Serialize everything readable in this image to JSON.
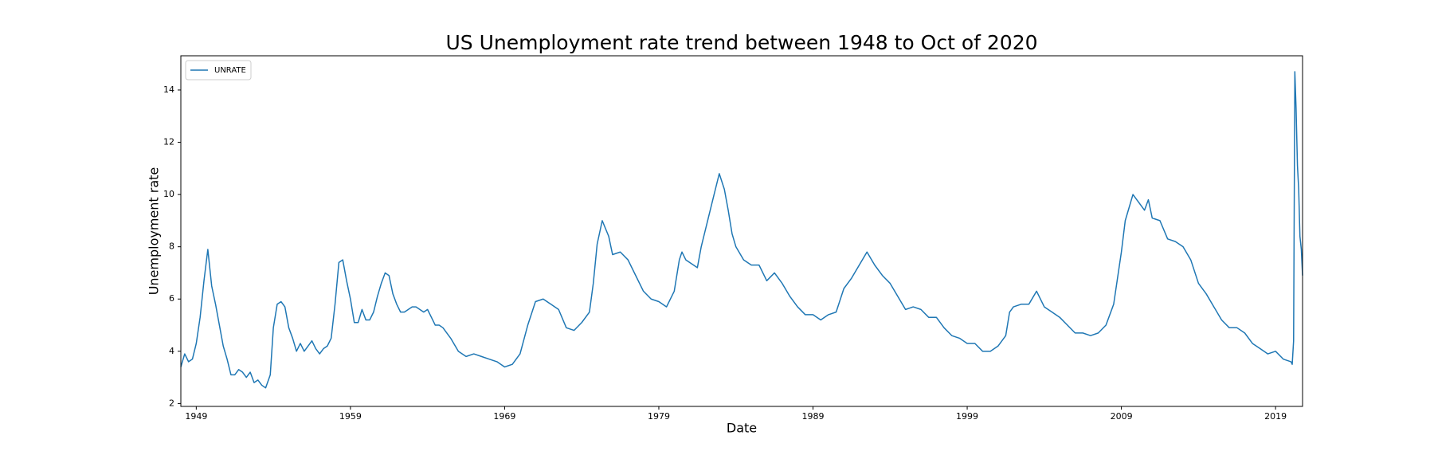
{
  "chart_data": {
    "type": "line",
    "title": "US Unemployment rate trend between 1948 to Oct of 2020",
    "x_label": "Date",
    "y_label": "Unemployment rate",
    "legend_loc": "upper left",
    "x": [
      1948.0,
      1948.25,
      1948.5,
      1948.75,
      1949.0,
      1949.25,
      1949.5,
      1949.75,
      1950.0,
      1950.25,
      1950.5,
      1950.75,
      1951.0,
      1951.25,
      1951.5,
      1951.75,
      1952.0,
      1952.25,
      1952.5,
      1952.75,
      1953.0,
      1953.25,
      1953.5,
      1953.8,
      1954.0,
      1954.25,
      1954.5,
      1954.75,
      1955.0,
      1955.25,
      1955.5,
      1955.75,
      1956.0,
      1956.25,
      1956.5,
      1956.75,
      1957.0,
      1957.25,
      1957.5,
      1957.75,
      1958.0,
      1958.25,
      1958.5,
      1958.75,
      1959.0,
      1959.25,
      1959.5,
      1959.75,
      1960.0,
      1960.25,
      1960.5,
      1960.75,
      1961.0,
      1961.25,
      1961.5,
      1961.75,
      1962.0,
      1962.25,
      1962.5,
      1962.75,
      1963.0,
      1963.25,
      1963.5,
      1963.75,
      1964.0,
      1964.25,
      1964.5,
      1964.75,
      1965.0,
      1965.5,
      1966.0,
      1966.5,
      1967.0,
      1967.5,
      1968.0,
      1968.5,
      1969.0,
      1969.5,
      1970.0,
      1970.5,
      1971.0,
      1971.5,
      1972.0,
      1972.5,
      1973.0,
      1973.5,
      1974.0,
      1974.5,
      1974.75,
      1975.0,
      1975.33,
      1975.75,
      1976.0,
      1976.5,
      1977.0,
      1977.5,
      1978.0,
      1978.5,
      1979.0,
      1979.5,
      1980.0,
      1980.33,
      1980.5,
      1980.75,
      1981.0,
      1981.5,
      1981.75,
      1982.0,
      1982.5,
      1982.92,
      1983.25,
      1983.5,
      1983.75,
      1984.0,
      1984.5,
      1985.0,
      1985.5,
      1986.0,
      1986.5,
      1987.0,
      1987.5,
      1988.0,
      1988.5,
      1989.0,
      1989.5,
      1990.0,
      1990.5,
      1991.0,
      1991.5,
      1992.0,
      1992.5,
      1993.0,
      1993.5,
      1994.0,
      1994.5,
      1995.0,
      1995.5,
      1996.0,
      1996.5,
      1997.0,
      1997.5,
      1998.0,
      1998.5,
      1999.0,
      1999.5,
      2000.0,
      2000.5,
      2001.0,
      2001.5,
      2001.75,
      2002.0,
      2002.5,
      2003.0,
      2003.5,
      2004.0,
      2004.5,
      2005.0,
      2005.5,
      2006.0,
      2006.5,
      2007.0,
      2007.5,
      2008.0,
      2008.5,
      2008.75,
      2009.0,
      2009.25,
      2009.5,
      2009.75,
      2010.0,
      2010.5,
      2010.75,
      2011.0,
      2011.5,
      2012.0,
      2012.5,
      2013.0,
      2013.5,
      2014.0,
      2014.5,
      2015.0,
      2015.5,
      2016.0,
      2016.5,
      2017.0,
      2017.5,
      2018.0,
      2018.5,
      2019.0,
      2019.5,
      2020.0,
      2020.08,
      2020.17,
      2020.25,
      2020.33,
      2020.42,
      2020.5,
      2020.58,
      2020.67,
      2020.75
    ],
    "series": [
      {
        "name": "UNRATE",
        "color": "#1f77b4",
        "values": [
          3.4,
          3.9,
          3.6,
          3.7,
          4.3,
          5.3,
          6.7,
          7.9,
          6.5,
          5.8,
          5.0,
          4.2,
          3.7,
          3.1,
          3.1,
          3.3,
          3.2,
          3.0,
          3.2,
          2.8,
          2.9,
          2.7,
          2.6,
          3.1,
          4.9,
          5.8,
          5.9,
          5.7,
          4.9,
          4.5,
          4.0,
          4.3,
          4.0,
          4.2,
          4.4,
          4.1,
          3.9,
          4.1,
          4.2,
          4.5,
          5.8,
          7.4,
          7.5,
          6.7,
          6.0,
          5.1,
          5.1,
          5.6,
          5.2,
          5.2,
          5.5,
          6.1,
          6.6,
          7.0,
          6.9,
          6.2,
          5.8,
          5.5,
          5.5,
          5.6,
          5.7,
          5.7,
          5.6,
          5.5,
          5.6,
          5.3,
          5.0,
          5.0,
          4.9,
          4.5,
          4.0,
          3.8,
          3.9,
          3.8,
          3.7,
          3.6,
          3.4,
          3.5,
          3.9,
          5.0,
          5.9,
          6.0,
          5.8,
          5.6,
          4.9,
          4.8,
          5.1,
          5.5,
          6.6,
          8.1,
          9.0,
          8.4,
          7.7,
          7.8,
          7.5,
          6.9,
          6.3,
          6.0,
          5.9,
          5.7,
          6.3,
          7.5,
          7.8,
          7.5,
          7.4,
          7.2,
          8.0,
          8.6,
          9.8,
          10.8,
          10.2,
          9.4,
          8.5,
          8.0,
          7.5,
          7.3,
          7.3,
          6.7,
          7.0,
          6.6,
          6.1,
          5.7,
          5.4,
          5.4,
          5.2,
          5.4,
          5.5,
          6.4,
          6.8,
          7.3,
          7.8,
          7.3,
          6.9,
          6.6,
          6.1,
          5.6,
          5.7,
          5.6,
          5.3,
          5.3,
          4.9,
          4.6,
          4.5,
          4.3,
          4.3,
          4.0,
          4.0,
          4.2,
          4.6,
          5.5,
          5.7,
          5.8,
          5.8,
          6.3,
          5.7,
          5.5,
          5.3,
          5.0,
          4.7,
          4.7,
          4.6,
          4.7,
          5.0,
          5.8,
          6.8,
          7.8,
          9.0,
          9.5,
          10.0,
          9.8,
          9.4,
          9.8,
          9.1,
          9.0,
          8.3,
          8.2,
          8.0,
          7.5,
          6.6,
          6.2,
          5.7,
          5.2,
          4.9,
          4.9,
          4.7,
          4.3,
          4.1,
          3.9,
          4.0,
          3.7,
          3.6,
          3.5,
          4.4,
          14.7,
          13.3,
          11.1,
          10.2,
          8.4,
          7.9,
          6.9
        ]
      }
    ],
    "xlim": [
      1948.0,
      2020.75
    ],
    "xticks": [
      1949,
      1959,
      1969,
      1979,
      1989,
      1999,
      2009,
      2019
    ],
    "ylim": [
      1.89,
      15.31
    ],
    "yticks": [
      2,
      4,
      6,
      8,
      10,
      12,
      14
    ]
  }
}
